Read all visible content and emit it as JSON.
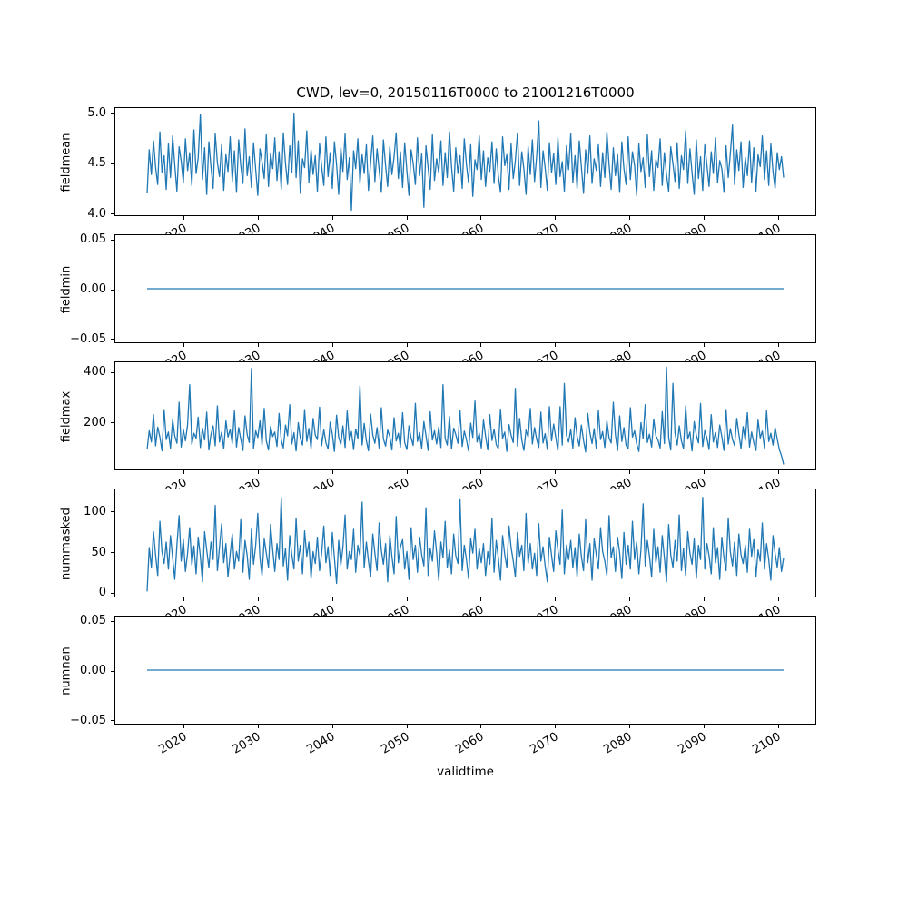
{
  "figure": {
    "background": "#ffffff",
    "line_color": "#1f77b4",
    "axis_color": "#000000"
  },
  "chart_data": {
    "type": "line",
    "title": "CWD, lev=0, 20150116T0000 to 21001216T0000",
    "xlabel": "validtime",
    "legend": "none",
    "grid": false,
    "x_range": [
      2015.04,
      2100.96
    ],
    "xlim": [
      2010.75,
      2105.25
    ],
    "xticks": [
      2020,
      2030,
      2040,
      2050,
      2060,
      2070,
      2080,
      2090,
      2100
    ],
    "xtick_rotation_deg": 30,
    "subplots": [
      {
        "name": "fieldmean",
        "ylabel": "fieldmean",
        "ylim": [
          3.97,
          5.05
        ],
        "yticks": [
          {
            "v": 5.0,
            "label": "5.0"
          },
          {
            "v": 4.5,
            "label": "4.5"
          },
          {
            "v": 4.0,
            "label": "4.0"
          }
        ],
        "values": [
          4.19,
          4.63,
          4.38,
          4.72,
          4.45,
          4.28,
          4.81,
          4.4,
          4.57,
          4.23,
          4.69,
          4.35,
          4.77,
          4.48,
          4.21,
          4.66,
          4.52,
          4.3,
          4.74,
          4.42,
          4.6,
          4.27,
          4.83,
          4.39,
          4.55,
          4.99,
          4.33,
          4.65,
          4.18,
          4.71,
          4.46,
          4.24,
          4.79,
          4.5,
          4.36,
          4.68,
          4.22,
          4.58,
          4.41,
          4.76,
          4.31,
          4.62,
          4.2,
          4.73,
          4.47,
          4.29,
          4.84,
          4.37,
          4.56,
          4.25,
          4.7,
          4.43,
          4.17,
          4.64,
          4.51,
          4.34,
          4.78,
          4.26,
          4.59,
          4.44,
          4.75,
          4.32,
          4.61,
          4.23,
          4.8,
          4.49,
          4.28,
          4.67,
          4.4,
          5.0,
          4.35,
          4.72,
          4.19,
          4.54,
          4.45,
          4.82,
          4.3,
          4.63,
          4.38,
          4.57,
          4.21,
          4.69,
          4.46,
          4.27,
          4.76,
          4.36,
          4.6,
          4.24,
          4.71,
          4.48,
          4.18,
          4.65,
          4.41,
          4.79,
          4.33,
          4.55,
          4.02,
          4.62,
          4.44,
          4.74,
          4.29,
          4.58,
          4.39,
          4.68,
          4.22,
          4.5,
          4.77,
          4.31,
          4.64,
          4.43,
          4.2,
          4.73,
          4.47,
          4.26,
          4.66,
          4.38,
          4.56,
          4.8,
          4.34,
          4.61,
          4.25,
          4.7,
          4.42,
          4.17,
          4.63,
          4.49,
          4.28,
          4.75,
          4.37,
          4.59,
          4.05,
          4.67,
          4.45,
          4.23,
          4.78,
          4.32,
          4.54,
          4.4,
          4.72,
          4.27,
          4.6,
          4.35,
          4.81,
          4.46,
          4.21,
          4.65,
          4.39,
          4.57,
          4.24,
          4.74,
          4.48,
          4.3,
          4.68,
          4.16,
          4.53,
          4.43,
          4.77,
          4.33,
          4.62,
          4.26,
          4.55,
          4.41,
          4.71,
          4.29,
          4.64,
          4.37,
          4.2,
          4.76,
          4.47,
          4.58,
          4.23,
          4.69,
          4.34,
          4.52,
          4.8,
          4.27,
          4.61,
          4.44,
          4.18,
          4.66,
          4.38,
          4.73,
          4.31,
          4.56,
          4.92,
          4.25,
          4.62,
          4.45,
          4.22,
          4.7,
          4.4,
          4.59,
          4.28,
          4.75,
          4.36,
          4.51,
          4.21,
          4.67,
          4.43,
          4.79,
          4.3,
          4.57,
          4.24,
          4.72,
          4.46,
          4.19,
          4.63,
          4.39,
          4.77,
          4.29,
          4.54,
          4.42,
          4.68,
          4.26,
          4.6,
          4.35,
          4.81,
          4.48,
          4.23,
          4.65,
          4.37,
          4.58,
          4.2,
          4.71,
          4.44,
          4.28,
          4.76,
          4.33,
          4.61,
          4.47,
          4.17,
          4.69,
          4.41,
          4.55,
          4.25,
          4.78,
          4.36,
          4.62,
          4.22,
          4.53,
          4.45,
          4.74,
          4.27,
          4.6,
          4.38,
          4.21,
          4.66,
          4.49,
          4.31,
          4.7,
          4.24,
          4.57,
          4.43,
          4.82,
          4.29,
          4.64,
          4.4,
          4.18,
          4.73,
          4.34,
          4.56,
          4.22,
          4.68,
          4.47,
          4.26,
          4.61,
          4.39,
          4.75,
          4.3,
          4.52,
          4.44,
          4.2,
          4.67,
          4.35,
          4.59,
          4.88,
          4.28,
          4.63,
          4.42,
          4.71,
          4.25,
          4.55,
          4.37,
          4.72,
          4.3,
          4.65,
          4.21,
          4.58,
          4.46,
          4.77,
          4.33,
          4.62,
          4.27,
          4.69,
          4.41,
          4.24,
          4.6,
          4.43,
          4.56,
          4.35
        ]
      },
      {
        "name": "fieldmin",
        "ylabel": "fieldmin",
        "ylim": [
          -0.055,
          0.055
        ],
        "yticks": [
          {
            "v": 0.05,
            "label": "0.05"
          },
          {
            "v": 0.0,
            "label": "0.00"
          },
          {
            "v": -0.05,
            "label": "−0.05"
          }
        ],
        "constant": 0.0
      },
      {
        "name": "fieldmax",
        "ylabel": "fieldmax",
        "ylim": [
          10,
          440
        ],
        "yticks": [
          {
            "v": 400,
            "label": "400"
          },
          {
            "v": 200,
            "label": "200"
          }
        ],
        "values": [
          90,
          165,
          120,
          230,
          105,
          180,
          140,
          85,
          250,
          130,
          160,
          95,
          210,
          145,
          115,
          280,
          100,
          170,
          125,
          190,
          350,
          110,
          155,
          135,
          220,
          98,
          175,
          128,
          240,
          88,
          150,
          185,
          105,
          265,
          120,
          160,
          92,
          205,
          140,
          170,
          115,
          245,
          100,
          178,
          132,
          86,
          225,
          150,
          118,
          415,
          95,
          165,
          138,
          205,
          108,
          255,
          125,
          88,
          182,
          142,
          160,
          102,
          235,
          128,
          96,
          188,
          145,
          270,
          112,
          158,
          84,
          198,
          135,
          108,
          250,
          122,
          175,
          93,
          215,
          148,
          130,
          260,
          105,
          170,
          118,
          92,
          200,
          152,
          82,
          228,
          140,
          110,
          185,
          98,
          245,
          126,
          162,
          90,
          172,
          134,
          345,
          108,
          195,
          125,
          85,
          232,
          148,
          115,
          178,
          96,
          258,
          132,
          104,
          168,
          142,
          88,
          218,
          124,
          155,
          100,
          238,
          118,
          90,
          185,
          136,
          106,
          275,
          122,
          158,
          94,
          202,
          146,
          86,
          242,
          128,
          166,
          112,
          180,
          98,
          350,
          134,
          108,
          222,
          92,
          176,
          150,
          115,
          248,
          102,
          164,
          130,
          84,
          196,
          138,
          285,
          120,
          156,
          96,
          208,
          144,
          88,
          230,
          126,
          172,
          110,
          94,
          252,
          135,
          160,
          82,
          190,
          148,
          118,
          335,
          104,
          215,
          128,
          86,
          168,
          140,
          255,
          112,
          178,
          132,
          98,
          240,
          116,
          154,
          90,
          262,
          125,
          192,
          138,
          85,
          262,
          108,
          355,
          146,
          120,
          170,
          95,
          218,
          142,
          104,
          188,
          126,
          80,
          235,
          158,
          114,
          174,
          92,
          246,
          130,
          162,
          98,
          205,
          136,
          116,
          280,
          150,
          86,
          225,
          122,
          178,
          106,
          94,
          258,
          140,
          165,
          112,
          82,
          198,
          134,
          270,
          118,
          152,
          100,
          212,
          145,
          128,
          96,
          242,
          114,
          420,
          138,
          88,
          355,
          155,
          108,
          185,
          124,
          94,
          265,
          132,
          160,
          84,
          202,
          148,
          116,
          275,
          102,
          166,
          135,
          90,
          230,
          120,
          158,
          98,
          188,
          142,
          86,
          250,
          112,
          174,
          130,
          106,
          215,
          152,
          94,
          182,
          126,
          238,
          100,
          160,
          118,
          86,
          208,
          136,
          164,
          96,
          245,
          122,
          155,
          108,
          178,
          132,
          90,
          65,
          30
        ]
      },
      {
        "name": "nummasked",
        "ylabel": "nummasked",
        "ylim": [
          -6.5,
          128
        ],
        "yticks": [
          {
            "v": 100,
            "label": "100"
          },
          {
            "v": 50,
            "label": "50"
          },
          {
            "v": 0,
            "label": "0"
          }
        ],
        "values": [
          0,
          55,
          30,
          75,
          45,
          20,
          88,
          50,
          35,
          62,
          28,
          70,
          42,
          15,
          58,
          95,
          38,
          65,
          25,
          48,
          80,
          33,
          57,
          22,
          68,
          44,
          12,
          75,
          52,
          30,
          62,
          40,
          108,
          26,
          55,
          85,
          36,
          60,
          18,
          47,
          72,
          28,
          50,
          38,
          90,
          24,
          64,
          45,
          15,
          78,
          34,
          58,
          98,
          42,
          20,
          66,
          48,
          30,
          84,
          52,
          25,
          60,
          40,
          118,
          32,
          54,
          14,
          70,
          46,
          28,
          92,
          38,
          58,
          22,
          76,
          44,
          62,
          16,
          50,
          35,
          68,
          26,
          48,
          82,
          36,
          56,
          20,
          74,
          42,
          10,
          64,
          33,
          55,
          96,
          28,
          50,
          40,
          78,
          24,
          58,
          45,
          112,
          30,
          62,
          38,
          18,
          72,
          48,
          26,
          86,
          52,
          34,
          60,
          12,
          70,
          44,
          22,
          94,
          36,
          56,
          65,
          28,
          50,
          15,
          80,
          40,
          58,
          24,
          68,
          46,
          32,
          105,
          20,
          54,
          38,
          76,
          48,
          14,
          62,
          42,
          88,
          30,
          52,
          22,
          72,
          45,
          35,
          115,
          26,
          58,
          40,
          16,
          66,
          48,
          78,
          28,
          54,
          36,
          60,
          20,
          50,
          34,
          92,
          24,
          64,
          42,
          14,
          70,
          46,
          30,
          82,
          55,
          38,
          18,
          74,
          44,
          58,
          26,
          98,
          35,
          60,
          28,
          48,
          20,
          85,
          38,
          56,
          32,
          12,
          68,
          45,
          25,
          76,
          52,
          34,
          102,
          22,
          58,
          40,
          64,
          30,
          55,
          18,
          72,
          44,
          26,
          90,
          36,
          60,
          14,
          66,
          46,
          28,
          80,
          50,
          38,
          20,
          95,
          42,
          56,
          25,
          68,
          48,
          16,
          74,
          34,
          58,
          28,
          88,
          40,
          62,
          22,
          52,
          110,
          32,
          64,
          44,
          18,
          78,
          36,
          56,
          24,
          70,
          42,
          12,
          84,
          46,
          30,
          64,
          38,
          96,
          26,
          54,
          20,
          75,
          48,
          34,
          66,
          16,
          58,
          40,
          118,
          28,
          60,
          45,
          22,
          80,
          36,
          55,
          15,
          68,
          42,
          26,
          92,
          50,
          32,
          62,
          20,
          72,
          46,
          35,
          58,
          24,
          78,
          44,
          65,
          18,
          52,
          38,
          86,
          28,
          60,
          40,
          14,
          70,
          48,
          30,
          55,
          25,
          42
        ]
      },
      {
        "name": "numnan",
        "ylabel": "numnan",
        "ylim": [
          -0.055,
          0.055
        ],
        "yticks": [
          {
            "v": 0.05,
            "label": "0.05"
          },
          {
            "v": 0.0,
            "label": "0.00"
          },
          {
            "v": -0.05,
            "label": "−0.05"
          }
        ],
        "constant": 0.0
      }
    ]
  }
}
